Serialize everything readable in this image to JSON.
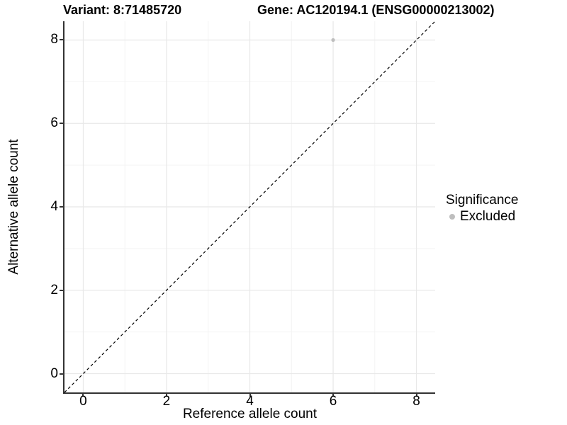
{
  "chart_data": {
    "type": "scatter",
    "title_left": "Variant: 8:71485720",
    "title_right": "Gene: AC120194.1 (ENSG00000213002)",
    "xlabel": "Reference allele count",
    "ylabel": "Alternative allele count",
    "xlim": [
      -0.45,
      8.45
    ],
    "ylim": [
      -0.45,
      8.45
    ],
    "x_ticks": [
      0,
      2,
      4,
      6,
      8
    ],
    "y_ticks": [
      0,
      2,
      4,
      6,
      8
    ],
    "x_minor_ticks": [
      1,
      3,
      5,
      7
    ],
    "y_minor_ticks": [
      1,
      3,
      5,
      7
    ],
    "grid": true,
    "points": [
      {
        "x": 6,
        "y": 8,
        "series": "Excluded"
      }
    ],
    "identity_line": {
      "style": "dashed",
      "from": [
        -0.45,
        -0.45
      ],
      "to": [
        8.45,
        8.45
      ],
      "color": "#000000"
    },
    "legend": {
      "title": "Significance",
      "position": "right",
      "entries": [
        {
          "label": "Excluded",
          "color": "#bebebe"
        }
      ]
    },
    "colors": {
      "background": "#ffffff",
      "point": "#bebebe",
      "grid_major": "#e8e8e8",
      "grid_minor": "#f4f4f4",
      "axis_line": "#333333",
      "text": "#000000"
    }
  }
}
